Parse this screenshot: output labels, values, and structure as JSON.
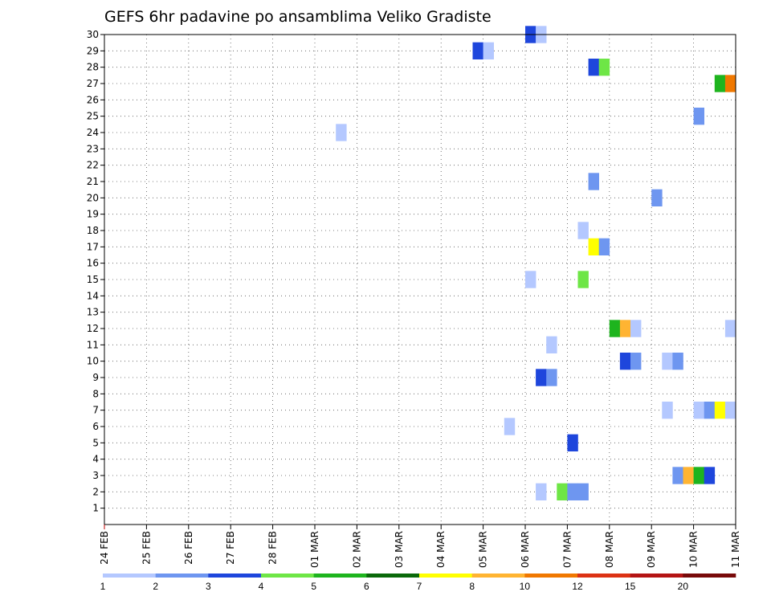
{
  "chart_data": {
    "type": "heatmap",
    "title": "GEFS 6hr padavine po ansamblima Veliko Gradiste",
    "xlabel": "",
    "ylabel": "",
    "x_ticks": [
      "24 FEB",
      "25 FEB",
      "26 FEB",
      "27 FEB",
      "28 FEB",
      "01 MAR",
      "02 MAR",
      "03 MAR",
      "04 MAR",
      "05 MAR",
      "06 MAR",
      "07 MAR",
      "08 MAR",
      "09 MAR",
      "10 MAR",
      "11 MAR"
    ],
    "x_step_hours": 6,
    "xlim_steps": [
      0,
      60
    ],
    "y_ticks": [
      1,
      2,
      3,
      4,
      5,
      6,
      7,
      8,
      9,
      10,
      11,
      12,
      13,
      14,
      15,
      16,
      17,
      18,
      19,
      20,
      21,
      22,
      23,
      24,
      25,
      26,
      27,
      28,
      29,
      30
    ],
    "ylim": [
      0,
      30
    ],
    "grid": true,
    "colorbar": {
      "levels": [
        "1",
        "2",
        "3",
        "4",
        "5",
        "6",
        "7",
        "8",
        "10",
        "12",
        "15",
        "20"
      ],
      "colors": [
        "#b4c8ff",
        "#6e96f0",
        "#1e46dc",
        "#6ee646",
        "#1eb41e",
        "#0a690a",
        "#ffff00",
        "#ffb432",
        "#f07800",
        "#dc3214",
        "#b41414",
        "#780a0a"
      ]
    },
    "cells": [
      {
        "member": 30,
        "step": 40,
        "color": "#1e46dc"
      },
      {
        "member": 30,
        "step": 41,
        "color": "#b4c8ff"
      },
      {
        "member": 29,
        "step": 35,
        "color": "#1e46dc"
      },
      {
        "member": 29,
        "step": 36,
        "color": "#b4c8ff"
      },
      {
        "member": 28,
        "step": 46,
        "color": "#1e46dc"
      },
      {
        "member": 28,
        "step": 47,
        "color": "#6ee646"
      },
      {
        "member": 27,
        "step": 58,
        "color": "#1eb41e"
      },
      {
        "member": 27,
        "step": 59,
        "color": "#f07800"
      },
      {
        "member": 25,
        "step": 56,
        "color": "#6e96f0"
      },
      {
        "member": 24,
        "step": 22,
        "color": "#b4c8ff"
      },
      {
        "member": 21,
        "step": 46,
        "color": "#6e96f0"
      },
      {
        "member": 20,
        "step": 52,
        "color": "#6e96f0"
      },
      {
        "member": 18,
        "step": 45,
        "color": "#b4c8ff"
      },
      {
        "member": 17,
        "step": 46,
        "color": "#ffff00"
      },
      {
        "member": 17,
        "step": 47,
        "color": "#6e96f0"
      },
      {
        "member": 15,
        "step": 40,
        "color": "#b4c8ff"
      },
      {
        "member": 15,
        "step": 45,
        "color": "#6ee646"
      },
      {
        "member": 12,
        "step": 48,
        "color": "#1eb41e"
      },
      {
        "member": 12,
        "step": 49,
        "color": "#ffb432"
      },
      {
        "member": 12,
        "step": 50,
        "color": "#b4c8ff"
      },
      {
        "member": 12,
        "step": 59,
        "color": "#b4c8ff"
      },
      {
        "member": 11,
        "step": 42,
        "color": "#b4c8ff"
      },
      {
        "member": 10,
        "step": 49,
        "color": "#1e46dc"
      },
      {
        "member": 10,
        "step": 50,
        "color": "#6e96f0"
      },
      {
        "member": 10,
        "step": 53,
        "color": "#b4c8ff"
      },
      {
        "member": 10,
        "step": 54,
        "color": "#6e96f0"
      },
      {
        "member": 9,
        "step": 41,
        "color": "#1e46dc"
      },
      {
        "member": 9,
        "step": 42,
        "color": "#6e96f0"
      },
      {
        "member": 7,
        "step": 53,
        "color": "#b4c8ff"
      },
      {
        "member": 7,
        "step": 56,
        "color": "#b4c8ff"
      },
      {
        "member": 7,
        "step": 57,
        "color": "#6e96f0"
      },
      {
        "member": 7,
        "step": 58,
        "color": "#ffff00"
      },
      {
        "member": 7,
        "step": 59,
        "color": "#b4c8ff"
      },
      {
        "member": 6,
        "step": 38,
        "color": "#b4c8ff"
      },
      {
        "member": 5,
        "step": 44,
        "color": "#1e46dc"
      },
      {
        "member": 3,
        "step": 54,
        "color": "#6e96f0"
      },
      {
        "member": 3,
        "step": 55,
        "color": "#ffb432"
      },
      {
        "member": 3,
        "step": 56,
        "color": "#1eb41e"
      },
      {
        "member": 3,
        "step": 57,
        "color": "#1e46dc"
      },
      {
        "member": 2,
        "step": 41,
        "color": "#b4c8ff"
      },
      {
        "member": 2,
        "step": 43,
        "color": "#6ee646"
      },
      {
        "member": 2,
        "step": 44,
        "color": "#6e96f0"
      },
      {
        "member": 2,
        "step": 45,
        "color": "#6e96f0"
      }
    ]
  }
}
